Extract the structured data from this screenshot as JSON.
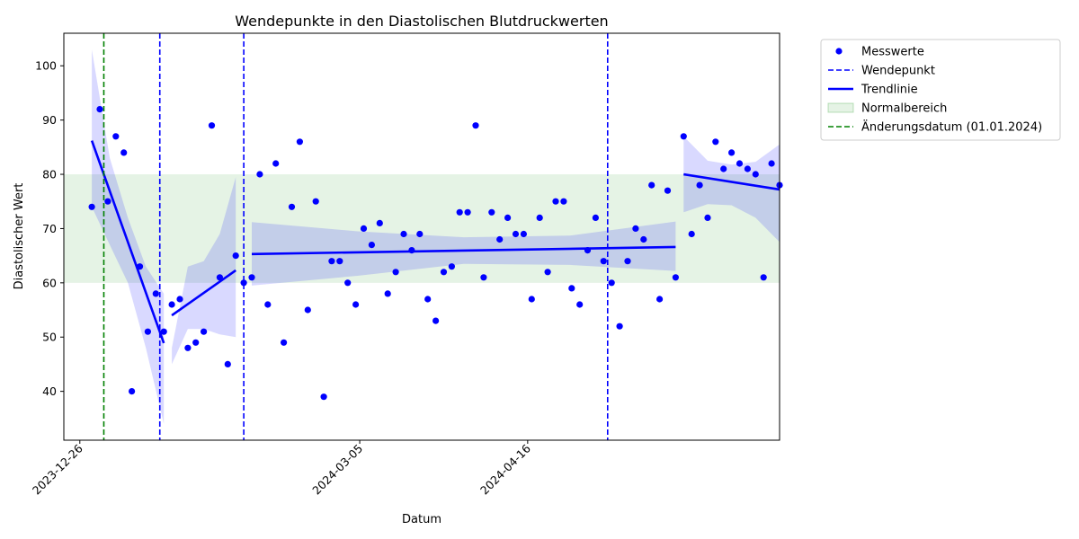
{
  "chart_data": {
    "type": "scatter",
    "title": "Wendepunkte in den Diastolischen Blutdruckwerten",
    "xlabel": "Datum",
    "ylabel": "Diastolischer Wert",
    "x_type": "date",
    "xlim": [
      "2023-12-22",
      "2024-05-29"
    ],
    "ylim": [
      31,
      106
    ],
    "x_ticks": [
      "2023-12-26",
      "2024-03-05",
      "2024-04-16"
    ],
    "y_ticks": [
      40,
      50,
      60,
      70,
      80,
      90,
      100
    ],
    "grid": false,
    "legend_position": "outside-top-right",
    "normal_range": {
      "label": "Normalbereich",
      "low": 60,
      "high": 80,
      "color": "#2ca02c"
    },
    "change_date": {
      "label": "Änderungsdatum (01.01.2024)",
      "date": "2024-01-01",
      "color": "#008000"
    },
    "turning_points": {
      "label": "Wendepunkt",
      "color": "#0000ff",
      "dates": [
        "2024-01-15",
        "2024-02-05",
        "2024-05-06"
      ]
    },
    "measurements": {
      "label": "Messwerte",
      "color": "#0000ff",
      "points": [
        [
          "2023-12-29",
          74
        ],
        [
          "2023-12-31",
          92
        ],
        [
          "2024-01-02",
          75
        ],
        [
          "2024-01-04",
          87
        ],
        [
          "2024-01-06",
          84
        ],
        [
          "2024-01-08",
          40
        ],
        [
          "2024-01-10",
          63
        ],
        [
          "2024-01-12",
          51
        ],
        [
          "2024-01-14",
          58
        ],
        [
          "2024-01-16",
          51
        ],
        [
          "2024-01-18",
          56
        ],
        [
          "2024-01-20",
          57
        ],
        [
          "2024-01-22",
          48
        ],
        [
          "2024-01-24",
          49
        ],
        [
          "2024-01-26",
          51
        ],
        [
          "2024-01-28",
          89
        ],
        [
          "2024-01-30",
          61
        ],
        [
          "2024-02-01",
          45
        ],
        [
          "2024-02-03",
          65
        ],
        [
          "2024-02-05",
          60
        ],
        [
          "2024-02-07",
          61
        ],
        [
          "2024-02-09",
          80
        ],
        [
          "2024-02-11",
          56
        ],
        [
          "2024-02-13",
          82
        ],
        [
          "2024-02-15",
          49
        ],
        [
          "2024-02-17",
          74
        ],
        [
          "2024-02-19",
          86
        ],
        [
          "2024-02-21",
          55
        ],
        [
          "2024-02-23",
          75
        ],
        [
          "2024-02-25",
          39
        ],
        [
          "2024-02-27",
          64
        ],
        [
          "2024-02-29",
          64
        ],
        [
          "2024-03-02",
          60
        ],
        [
          "2024-03-04",
          56
        ],
        [
          "2024-03-06",
          70
        ],
        [
          "2024-03-08",
          67
        ],
        [
          "2024-03-10",
          71
        ],
        [
          "2024-03-12",
          58
        ],
        [
          "2024-03-14",
          62
        ],
        [
          "2024-03-16",
          69
        ],
        [
          "2024-03-18",
          66
        ],
        [
          "2024-03-20",
          69
        ],
        [
          "2024-03-22",
          57
        ],
        [
          "2024-03-24",
          53
        ],
        [
          "2024-03-26",
          62
        ],
        [
          "2024-03-28",
          63
        ],
        [
          "2024-03-30",
          73
        ],
        [
          "2024-04-01",
          73
        ],
        [
          "2024-04-03",
          89
        ],
        [
          "2024-04-05",
          61
        ],
        [
          "2024-04-07",
          73
        ],
        [
          "2024-04-09",
          68
        ],
        [
          "2024-04-11",
          72
        ],
        [
          "2024-04-13",
          69
        ],
        [
          "2024-04-15",
          69
        ],
        [
          "2024-04-17",
          57
        ],
        [
          "2024-04-19",
          72
        ],
        [
          "2024-04-21",
          62
        ],
        [
          "2024-04-23",
          75
        ],
        [
          "2024-04-25",
          75
        ],
        [
          "2024-04-27",
          59
        ],
        [
          "2024-04-29",
          56
        ],
        [
          "2024-05-01",
          66
        ],
        [
          "2024-05-03",
          72
        ],
        [
          "2024-05-05",
          64
        ],
        [
          "2024-05-07",
          60
        ],
        [
          "2024-05-09",
          52
        ],
        [
          "2024-05-11",
          64
        ],
        [
          "2024-05-13",
          70
        ],
        [
          "2024-05-15",
          68
        ],
        [
          "2024-05-17",
          78
        ],
        [
          "2024-05-19",
          57
        ],
        [
          "2024-05-21",
          77
        ],
        [
          "2024-05-23",
          61
        ],
        [
          "2024-05-25",
          87
        ],
        [
          "2024-05-27",
          69
        ],
        [
          "2024-05-29",
          78
        ],
        [
          "2024-05-31",
          72
        ],
        [
          "2024-06-02",
          86
        ],
        [
          "2024-06-04",
          81
        ],
        [
          "2024-06-06",
          84
        ],
        [
          "2024-06-08",
          82
        ],
        [
          "2024-06-10",
          81
        ],
        [
          "2024-06-12",
          80
        ],
        [
          "2024-06-14",
          61
        ],
        [
          "2024-06-16",
          82
        ],
        [
          "2024-06-18",
          78
        ]
      ]
    },
    "trend": {
      "label": "Trendlinie",
      "color": "#0000ff",
      "segments": [
        {
          "x0": "2023-12-29",
          "x1": "2024-01-16",
          "y0": 86.2,
          "y1": 48.9,
          "band_upper": [
            [
              0,
              103
            ],
            [
              0.25,
              83
            ],
            [
              0.5,
              72
            ],
            [
              0.75,
              63
            ],
            [
              1,
              58
            ]
          ],
          "band_lower": [
            [
              0,
              74
            ],
            [
              0.25,
              67
            ],
            [
              0.5,
              60
            ],
            [
              0.75,
              48
            ],
            [
              1,
              34
            ]
          ]
        },
        {
          "x0": "2024-01-18",
          "x1": "2024-02-03",
          "y0": 54.0,
          "y1": 62.3,
          "band_upper": [
            [
              0,
              48
            ],
            [
              0.25,
              63
            ],
            [
              0.5,
              64
            ],
            [
              0.75,
              69
            ],
            [
              1,
              79.5
            ]
          ],
          "band_lower": [
            [
              0,
              45
            ],
            [
              0.25,
              51.5
            ],
            [
              0.5,
              51.5
            ],
            [
              0.75,
              50.5
            ],
            [
              1,
              50
            ]
          ]
        },
        {
          "x0": "2024-02-07",
          "x1": "2024-05-23",
          "y0": 65.3,
          "y1": 66.6,
          "band_upper": [
            [
              0,
              71.2
            ],
            [
              0.25,
              69.5
            ],
            [
              0.5,
              68.4
            ],
            [
              0.75,
              68.7
            ],
            [
              1,
              71.3
            ]
          ],
          "band_lower": [
            [
              0,
              59.5
            ],
            [
              0.25,
              61.3
            ],
            [
              0.5,
              63.5
            ],
            [
              0.75,
              63.3
            ],
            [
              1,
              62.2
            ]
          ]
        },
        {
          "x0": "2024-05-25",
          "x1": "2024-06-18",
          "y0": 80.0,
          "y1": 77.2,
          "band_upper": [
            [
              0,
              87
            ],
            [
              0.25,
              82.5
            ],
            [
              0.5,
              81.8
            ],
            [
              0.75,
              82.3
            ],
            [
              1,
              85.5
            ]
          ],
          "band_lower": [
            [
              0,
              73
            ],
            [
              0.25,
              74.5
            ],
            [
              0.5,
              74.3
            ],
            [
              0.75,
              72
            ],
            [
              1,
              67.5
            ]
          ]
        }
      ]
    },
    "legend": [
      {
        "type": "scatter",
        "label": "Messwerte"
      },
      {
        "type": "dashed-line",
        "label": "Wendepunkt"
      },
      {
        "type": "solid-line",
        "label": "Trendlinie"
      },
      {
        "type": "patch",
        "label": "Normalbereich"
      },
      {
        "type": "dashed-line-green",
        "label": "Änderungsdatum (01.01.2024)"
      }
    ]
  }
}
